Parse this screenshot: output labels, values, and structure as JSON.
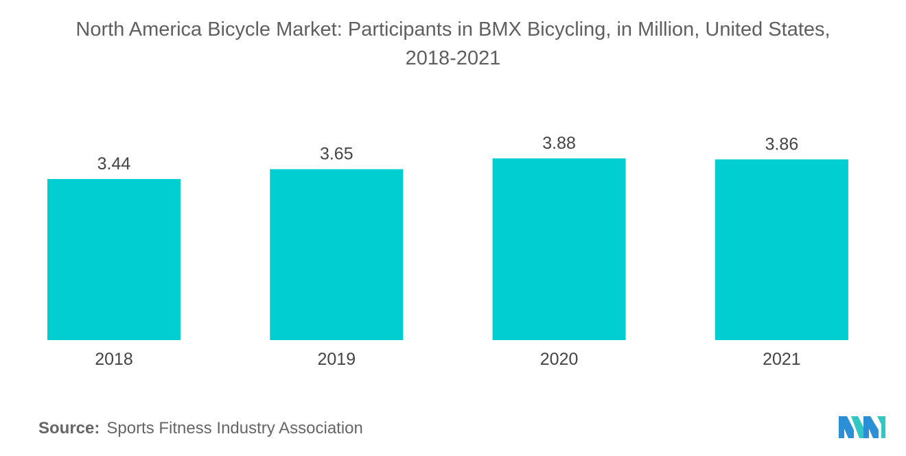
{
  "title": {
    "line1": "North America Bicycle Market: Participants in BMX Bicycling, in Million, United States,",
    "line2": "2018-2021"
  },
  "source": {
    "label": "Source:",
    "text": "Sports Fitness Industry Association"
  },
  "colors": {
    "bar": "#00CED1",
    "text": "#555555"
  },
  "logo": {
    "icon": "mordor-intelligence-logo-icon",
    "colors": [
      "#2a8fd6",
      "#33c6c2"
    ]
  },
  "chart_data": {
    "type": "bar",
    "categories": [
      "2018",
      "2019",
      "2020",
      "2021"
    ],
    "values": [
      3.44,
      3.65,
      3.88,
      3.86
    ],
    "data_labels": [
      "3.44",
      "3.65",
      "3.88",
      "3.86"
    ],
    "title": "North America Bicycle Market: Participants in BMX Bicycling, in Million, United States, 2018-2021",
    "xlabel": "",
    "ylabel": "",
    "ylim": [
      0,
      3.88
    ],
    "grid": false,
    "legend": "none"
  }
}
